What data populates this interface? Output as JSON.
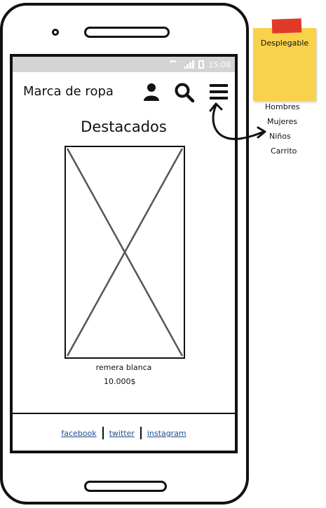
{
  "status_bar": {
    "time": "15:08"
  },
  "header": {
    "brand": "Marca de ropa",
    "icons": [
      "user-icon",
      "search-icon",
      "menu-icon"
    ]
  },
  "main": {
    "section_title": "Destacados",
    "product": {
      "name": "remera blanca",
      "price": "10.000$"
    }
  },
  "footer": {
    "links": [
      "facebook",
      "twitter",
      "instagram"
    ]
  },
  "annotation": {
    "note": "Desplegable",
    "menu_items": [
      "Hombres",
      "Mujeres",
      "Niños",
      "Carrito"
    ]
  },
  "colors": {
    "status_bar": "#d4d4d4",
    "sticky_note": "#f8d24a",
    "sticky_tape": "#e23a2a",
    "link": "#1c4c8a"
  }
}
